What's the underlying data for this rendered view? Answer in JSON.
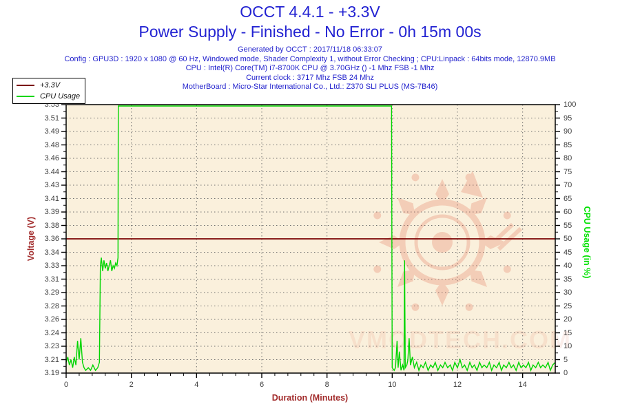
{
  "header": {
    "title_line1": "OCCT 4.4.1 - +3.3V",
    "title_line2": "Power Supply - Finished - No Error - 0h 15m 00s",
    "info_lines": [
      "Generated by OCCT : 2017/11/18 06:33:07",
      "Config : GPU3D : 1920 x 1080 @ 60 Hz, Windowed mode, Shader Complexity 1, without Error Checking ; CPU:Linpack : 64bits mode, 12870.9MB",
      "CPU : Intel(R) Core(TM) i7-8700K CPU @ 3.70GHz () -1 Mhz FSB -1 Mhz",
      "Current clock : 3717 Mhz FSB 24 Mhz",
      "MotherBoard : Micro-Star International Co., Ltd.: Z370 SLI PLUS (MS-7B46)"
    ]
  },
  "legend": {
    "items": [
      {
        "label": "+3.3V",
        "color": "#7a0000"
      },
      {
        "label": "CPU Usage",
        "color": "#00d500"
      }
    ]
  },
  "axes": {
    "left": {
      "label": "Voltage (V)",
      "ticks": [
        "3.53",
        "3.51",
        "3.49",
        "3.48",
        "3.46",
        "3.44",
        "3.43",
        "3.41",
        "3.39",
        "3.38",
        "3.36",
        "3.34",
        "3.33",
        "3.31",
        "3.29",
        "3.28",
        "3.26",
        "3.24",
        "3.23",
        "3.21",
        "3.19"
      ]
    },
    "right": {
      "label": "CPU Usage (in %)",
      "ticks": [
        "100",
        "95",
        "90",
        "85",
        "80",
        "75",
        "70",
        "65",
        "60",
        "55",
        "50",
        "45",
        "40",
        "35",
        "30",
        "25",
        "20",
        "15",
        "10",
        "5",
        "0"
      ]
    },
    "x": {
      "label": "Duration (Minutes)",
      "ticks": [
        "0",
        "2",
        "4",
        "6",
        "8",
        "10",
        "12",
        "14"
      ],
      "tick_minutes": [
        0,
        2,
        4,
        6,
        8,
        10,
        12,
        14
      ]
    }
  },
  "watermark": {
    "text": "VMODTECH.COM"
  },
  "colors": {
    "title_blue": "#2222d2",
    "plot_bg": "#faf0dc",
    "grid_dot": "#6e6e6e",
    "axis_label_red": "#a22c2c",
    "voltage_line": "#7a0000",
    "cpu_line": "#00d500",
    "cpu_label_green": "#00e100",
    "watermark_pink": "#e2765a",
    "tick_text": "#3d3d3d"
  },
  "chart_data": {
    "type": "line",
    "title": "OCCT 4.4.1 - +3.3V",
    "xlabel": "Duration (Minutes)",
    "ylabel_left": "Voltage (V)",
    "ylabel_right": "CPU Usage (in %)",
    "xlim": [
      0,
      15
    ],
    "ylim_left": [
      3.19,
      3.53
    ],
    "ylim_right": [
      0,
      100
    ],
    "grid": true,
    "legend_position": "top-left",
    "series": [
      {
        "name": "+3.3V",
        "axis": "left",
        "color": "#7a0000",
        "points": [
          [
            0,
            3.36
          ],
          [
            15,
            3.36
          ]
        ]
      },
      {
        "name": "CPU Usage",
        "axis": "right",
        "color": "#00d500",
        "points": [
          [
            0,
            4
          ],
          [
            0.05,
            6
          ],
          [
            0.1,
            3
          ],
          [
            0.15,
            5
          ],
          [
            0.2,
            2
          ],
          [
            0.25,
            6
          ],
          [
            0.3,
            3
          ],
          [
            0.35,
            12
          ],
          [
            0.4,
            5
          ],
          [
            0.45,
            13
          ],
          [
            0.5,
            4
          ],
          [
            0.55,
            2
          ],
          [
            0.6,
            1
          ],
          [
            0.68,
            2
          ],
          [
            0.75,
            1
          ],
          [
            0.82,
            3
          ],
          [
            0.9,
            1
          ],
          [
            0.97,
            2
          ],
          [
            1.02,
            4
          ],
          [
            1.05,
            40
          ],
          [
            1.08,
            43
          ],
          [
            1.12,
            38
          ],
          [
            1.16,
            42
          ],
          [
            1.2,
            39
          ],
          [
            1.24,
            41
          ],
          [
            1.28,
            38
          ],
          [
            1.32,
            40
          ],
          [
            1.36,
            42
          ],
          [
            1.4,
            38
          ],
          [
            1.44,
            40
          ],
          [
            1.48,
            39
          ],
          [
            1.52,
            41
          ],
          [
            1.56,
            40
          ],
          [
            1.59,
            43
          ],
          [
            1.6,
            100
          ],
          [
            9.98,
            100
          ],
          [
            10.0,
            2
          ],
          [
            10.06,
            1
          ],
          [
            10.1,
            2
          ],
          [
            10.15,
            12
          ],
          [
            10.18,
            2
          ],
          [
            10.22,
            8
          ],
          [
            10.27,
            1
          ],
          [
            10.32,
            3
          ],
          [
            10.36,
            1
          ],
          [
            10.38,
            42
          ],
          [
            10.4,
            2
          ],
          [
            10.45,
            3
          ],
          [
            10.48,
            5
          ],
          [
            10.52,
            13
          ],
          [
            10.56,
            3
          ],
          [
            10.62,
            6
          ],
          [
            10.68,
            2
          ],
          [
            10.75,
            4
          ],
          [
            10.82,
            1
          ],
          [
            10.88,
            3
          ],
          [
            10.95,
            2
          ],
          [
            11.02,
            4
          ],
          [
            11.1,
            1
          ],
          [
            11.18,
            3
          ],
          [
            11.25,
            2
          ],
          [
            11.32,
            4
          ],
          [
            11.4,
            1
          ],
          [
            11.48,
            3
          ],
          [
            11.55,
            2
          ],
          [
            11.62,
            4
          ],
          [
            11.7,
            2
          ],
          [
            11.78,
            3
          ],
          [
            11.85,
            1
          ],
          [
            11.92,
            4
          ],
          [
            12.0,
            2
          ],
          [
            12.08,
            5
          ],
          [
            12.15,
            2
          ],
          [
            12.22,
            3
          ],
          [
            12.3,
            1
          ],
          [
            12.38,
            4
          ],
          [
            12.45,
            2
          ],
          [
            12.52,
            3
          ],
          [
            12.6,
            1
          ],
          [
            12.68,
            4
          ],
          [
            12.75,
            2
          ],
          [
            12.82,
            3
          ],
          [
            12.9,
            2
          ],
          [
            12.98,
            4
          ],
          [
            13.05,
            1
          ],
          [
            13.12,
            3
          ],
          [
            13.2,
            2
          ],
          [
            13.28,
            4
          ],
          [
            13.35,
            1
          ],
          [
            13.42,
            3
          ],
          [
            13.5,
            2
          ],
          [
            13.58,
            4
          ],
          [
            13.65,
            2
          ],
          [
            13.72,
            3
          ],
          [
            13.8,
            1
          ],
          [
            13.88,
            4
          ],
          [
            13.95,
            2
          ],
          [
            14.02,
            3
          ],
          [
            14.1,
            2
          ],
          [
            14.18,
            4
          ],
          [
            14.25,
            1
          ],
          [
            14.32,
            3
          ],
          [
            14.4,
            2
          ],
          [
            14.48,
            4
          ],
          [
            14.55,
            2
          ],
          [
            14.62,
            3
          ],
          [
            14.7,
            2
          ],
          [
            14.78,
            4
          ],
          [
            14.85,
            1
          ],
          [
            14.92,
            3
          ],
          [
            15.0,
            4
          ]
        ]
      }
    ]
  }
}
